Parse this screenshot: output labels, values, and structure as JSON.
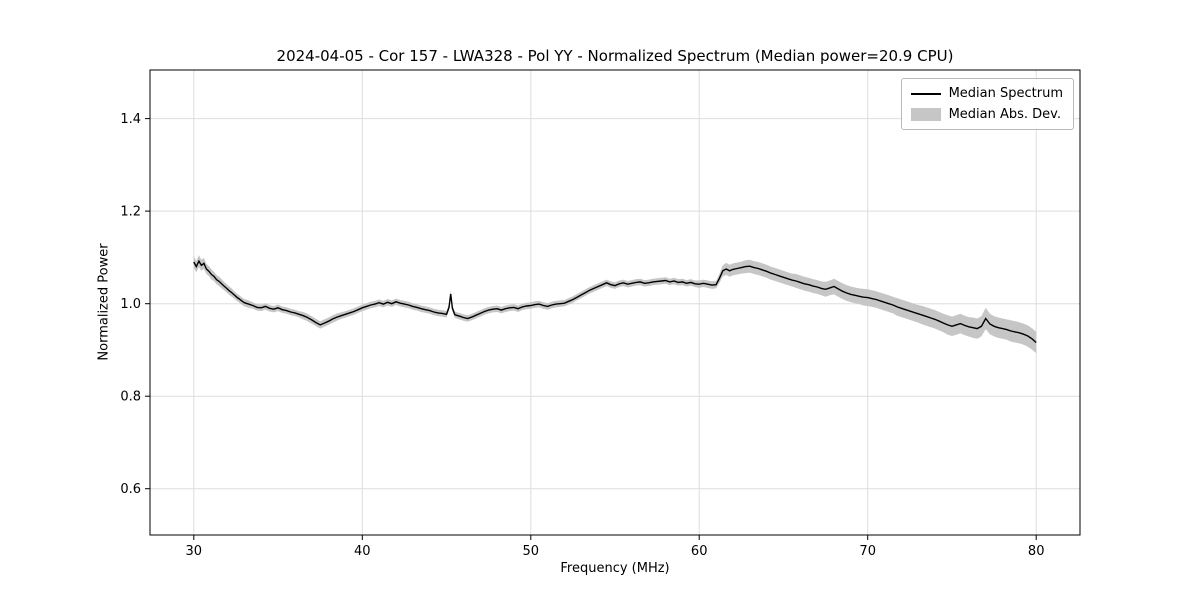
{
  "chart_data": {
    "type": "line",
    "title": "2024-04-05 - Cor 157 - LWA328 - Pol YY - Normalized Spectrum (Median power=20.9 CPU)",
    "xlabel": "Frequency (MHz)",
    "ylabel": "Normalized Power",
    "xlim": [
      27.4,
      82.6
    ],
    "ylim": [
      0.5,
      1.505
    ],
    "xticks": [
      30,
      40,
      50,
      60,
      70,
      80
    ],
    "yticks": [
      0.6,
      0.8,
      1.0,
      1.2,
      1.4
    ],
    "grid": true,
    "grid_color": "#dedede",
    "line_color": "#000000",
    "band_color": "#c6c6c6",
    "legend": {
      "position": "upper right",
      "entries": [
        {
          "label": "Median Spectrum",
          "marker": "line",
          "color": "#000000"
        },
        {
          "label": "Median Abs. Dev.",
          "marker": "patch",
          "color": "#c6c6c6"
        }
      ]
    },
    "point_format": [
      "frequency_mhz",
      "median_normalized_power",
      "median_abs_dev"
    ],
    "points": [
      [
        30.0,
        1.09,
        0.013
      ],
      [
        30.15,
        1.08,
        0.012
      ],
      [
        30.3,
        1.092,
        0.013
      ],
      [
        30.45,
        1.083,
        0.012
      ],
      [
        30.6,
        1.087,
        0.012
      ],
      [
        30.75,
        1.075,
        0.011
      ],
      [
        30.9,
        1.07,
        0.011
      ],
      [
        31.05,
        1.063,
        0.011
      ],
      [
        31.2,
        1.059,
        0.01
      ],
      [
        31.35,
        1.052,
        0.01
      ],
      [
        31.5,
        1.048,
        0.01
      ],
      [
        31.65,
        1.043,
        0.01
      ],
      [
        31.8,
        1.038,
        0.009
      ],
      [
        31.95,
        1.033,
        0.009
      ],
      [
        32.1,
        1.028,
        0.009
      ],
      [
        32.25,
        1.024,
        0.009
      ],
      [
        32.4,
        1.019,
        0.008
      ],
      [
        32.55,
        1.014,
        0.008
      ],
      [
        32.7,
        1.01,
        0.008
      ],
      [
        32.85,
        1.006,
        0.008
      ],
      [
        33.0,
        1.002,
        0.008
      ],
      [
        33.25,
        0.999,
        0.008
      ],
      [
        33.5,
        0.996,
        0.007
      ],
      [
        33.75,
        0.992,
        0.007
      ],
      [
        34.0,
        0.991,
        0.007
      ],
      [
        34.25,
        0.994,
        0.007
      ],
      [
        34.5,
        0.99,
        0.007
      ],
      [
        34.75,
        0.988,
        0.007
      ],
      [
        35.0,
        0.991,
        0.007
      ],
      [
        35.25,
        0.987,
        0.007
      ],
      [
        35.5,
        0.985,
        0.007
      ],
      [
        35.75,
        0.982,
        0.007
      ],
      [
        36.0,
        0.98,
        0.007
      ],
      [
        36.25,
        0.977,
        0.007
      ],
      [
        36.5,
        0.974,
        0.008
      ],
      [
        36.75,
        0.97,
        0.008
      ],
      [
        37.0,
        0.965,
        0.008
      ],
      [
        37.25,
        0.959,
        0.008
      ],
      [
        37.5,
        0.954,
        0.008
      ],
      [
        37.75,
        0.958,
        0.008
      ],
      [
        38.0,
        0.962,
        0.008
      ],
      [
        38.25,
        0.967,
        0.008
      ],
      [
        38.5,
        0.971,
        0.008
      ],
      [
        38.75,
        0.974,
        0.007
      ],
      [
        39.0,
        0.977,
        0.007
      ],
      [
        39.25,
        0.98,
        0.007
      ],
      [
        39.5,
        0.983,
        0.007
      ],
      [
        39.75,
        0.987,
        0.007
      ],
      [
        40.0,
        0.991,
        0.007
      ],
      [
        40.25,
        0.994,
        0.007
      ],
      [
        40.5,
        0.997,
        0.007
      ],
      [
        40.75,
        0.999,
        0.007
      ],
      [
        41.0,
        1.002,
        0.007
      ],
      [
        41.25,
        0.999,
        0.007
      ],
      [
        41.5,
        1.003,
        0.007
      ],
      [
        41.75,
        1.0,
        0.007
      ],
      [
        42.0,
        1.004,
        0.007
      ],
      [
        42.25,
        1.001,
        0.007
      ],
      [
        42.5,
        0.999,
        0.007
      ],
      [
        42.75,
        0.997,
        0.007
      ],
      [
        43.0,
        0.994,
        0.007
      ],
      [
        43.25,
        0.992,
        0.007
      ],
      [
        43.5,
        0.989,
        0.007
      ],
      [
        43.75,
        0.987,
        0.007
      ],
      [
        44.0,
        0.985,
        0.007
      ],
      [
        44.25,
        0.982,
        0.007
      ],
      [
        44.5,
        0.98,
        0.007
      ],
      [
        44.75,
        0.979,
        0.007
      ],
      [
        45.0,
        0.977,
        0.007
      ],
      [
        45.15,
        0.992,
        0.007
      ],
      [
        45.25,
        1.021,
        0.007
      ],
      [
        45.35,
        0.99,
        0.007
      ],
      [
        45.5,
        0.976,
        0.007
      ],
      [
        45.75,
        0.973,
        0.007
      ],
      [
        46.0,
        0.97,
        0.007
      ],
      [
        46.25,
        0.968,
        0.007
      ],
      [
        46.5,
        0.971,
        0.007
      ],
      [
        46.75,
        0.975,
        0.007
      ],
      [
        47.0,
        0.979,
        0.007
      ],
      [
        47.25,
        0.983,
        0.007
      ],
      [
        47.5,
        0.986,
        0.007
      ],
      [
        47.75,
        0.988,
        0.007
      ],
      [
        48.0,
        0.989,
        0.007
      ],
      [
        48.25,
        0.986,
        0.007
      ],
      [
        48.5,
        0.989,
        0.007
      ],
      [
        48.75,
        0.991,
        0.007
      ],
      [
        49.0,
        0.992,
        0.007
      ],
      [
        49.25,
        0.989,
        0.007
      ],
      [
        49.5,
        0.993,
        0.007
      ],
      [
        49.75,
        0.995,
        0.007
      ],
      [
        50.0,
        0.996,
        0.007
      ],
      [
        50.25,
        0.998,
        0.007
      ],
      [
        50.5,
        0.999,
        0.007
      ],
      [
        50.75,
        0.996,
        0.007
      ],
      [
        51.0,
        0.994,
        0.007
      ],
      [
        51.25,
        0.997,
        0.007
      ],
      [
        51.5,
        0.999,
        0.007
      ],
      [
        51.75,
        1.0,
        0.007
      ],
      [
        52.0,
        1.001,
        0.007
      ],
      [
        52.25,
        1.005,
        0.007
      ],
      [
        52.5,
        1.009,
        0.007
      ],
      [
        52.75,
        1.014,
        0.007
      ],
      [
        53.0,
        1.019,
        0.007
      ],
      [
        53.25,
        1.024,
        0.007
      ],
      [
        53.5,
        1.029,
        0.007
      ],
      [
        53.75,
        1.033,
        0.007
      ],
      [
        54.0,
        1.037,
        0.007
      ],
      [
        54.25,
        1.041,
        0.007
      ],
      [
        54.5,
        1.045,
        0.007
      ],
      [
        54.75,
        1.041,
        0.007
      ],
      [
        55.0,
        1.039,
        0.007
      ],
      [
        55.25,
        1.043,
        0.007
      ],
      [
        55.5,
        1.045,
        0.007
      ],
      [
        55.75,
        1.042,
        0.007
      ],
      [
        56.0,
        1.044,
        0.007
      ],
      [
        56.25,
        1.046,
        0.007
      ],
      [
        56.5,
        1.047,
        0.007
      ],
      [
        56.75,
        1.044,
        0.007
      ],
      [
        57.0,
        1.045,
        0.007
      ],
      [
        57.25,
        1.047,
        0.007
      ],
      [
        57.5,
        1.048,
        0.007
      ],
      [
        57.75,
        1.049,
        0.007
      ],
      [
        58.0,
        1.05,
        0.007
      ],
      [
        58.25,
        1.047,
        0.007
      ],
      [
        58.5,
        1.049,
        0.007
      ],
      [
        58.75,
        1.046,
        0.007
      ],
      [
        59.0,
        1.047,
        0.007
      ],
      [
        59.25,
        1.044,
        0.007
      ],
      [
        59.5,
        1.046,
        0.007
      ],
      [
        59.75,
        1.043,
        0.007
      ],
      [
        60.0,
        1.042,
        0.008
      ],
      [
        60.25,
        1.044,
        0.008
      ],
      [
        60.5,
        1.042,
        0.008
      ],
      [
        60.75,
        1.04,
        0.008
      ],
      [
        61.0,
        1.041,
        0.008
      ],
      [
        61.2,
        1.055,
        0.01
      ],
      [
        61.4,
        1.071,
        0.012
      ],
      [
        61.6,
        1.075,
        0.013
      ],
      [
        61.8,
        1.071,
        0.013
      ],
      [
        62.0,
        1.074,
        0.013
      ],
      [
        62.25,
        1.076,
        0.013
      ],
      [
        62.5,
        1.078,
        0.013
      ],
      [
        62.75,
        1.08,
        0.014
      ],
      [
        63.0,
        1.081,
        0.014
      ],
      [
        63.25,
        1.078,
        0.014
      ],
      [
        63.5,
        1.076,
        0.014
      ],
      [
        63.75,
        1.073,
        0.014
      ],
      [
        64.0,
        1.07,
        0.014
      ],
      [
        64.25,
        1.066,
        0.014
      ],
      [
        64.5,
        1.063,
        0.014
      ],
      [
        64.75,
        1.06,
        0.014
      ],
      [
        65.0,
        1.057,
        0.014
      ],
      [
        65.25,
        1.054,
        0.014
      ],
      [
        65.5,
        1.051,
        0.014
      ],
      [
        65.75,
        1.049,
        0.015
      ],
      [
        66.0,
        1.046,
        0.015
      ],
      [
        66.25,
        1.043,
        0.015
      ],
      [
        66.5,
        1.041,
        0.015
      ],
      [
        66.75,
        1.038,
        0.015
      ],
      [
        67.0,
        1.036,
        0.015
      ],
      [
        67.25,
        1.033,
        0.015
      ],
      [
        67.5,
        1.031,
        0.016
      ],
      [
        67.75,
        1.034,
        0.016
      ],
      [
        68.0,
        1.037,
        0.017
      ],
      [
        68.25,
        1.032,
        0.017
      ],
      [
        68.5,
        1.027,
        0.017
      ],
      [
        68.75,
        1.023,
        0.017
      ],
      [
        69.0,
        1.02,
        0.017
      ],
      [
        69.25,
        1.018,
        0.017
      ],
      [
        69.5,
        1.016,
        0.017
      ],
      [
        69.75,
        1.014,
        0.018
      ],
      [
        70.0,
        1.013,
        0.018
      ],
      [
        70.25,
        1.011,
        0.018
      ],
      [
        70.5,
        1.009,
        0.018
      ],
      [
        70.75,
        1.006,
        0.018
      ],
      [
        71.0,
        1.003,
        0.018
      ],
      [
        71.25,
        1.0,
        0.018
      ],
      [
        71.5,
        0.997,
        0.018
      ],
      [
        71.75,
        0.993,
        0.019
      ],
      [
        72.0,
        0.99,
        0.019
      ],
      [
        72.25,
        0.987,
        0.019
      ],
      [
        72.5,
        0.984,
        0.019
      ],
      [
        72.75,
        0.981,
        0.019
      ],
      [
        73.0,
        0.978,
        0.019
      ],
      [
        73.25,
        0.975,
        0.02
      ],
      [
        73.5,
        0.972,
        0.02
      ],
      [
        73.75,
        0.969,
        0.02
      ],
      [
        74.0,
        0.966,
        0.02
      ],
      [
        74.25,
        0.962,
        0.02
      ],
      [
        74.5,
        0.958,
        0.02
      ],
      [
        74.75,
        0.954,
        0.021
      ],
      [
        75.0,
        0.951,
        0.021
      ],
      [
        75.25,
        0.954,
        0.021
      ],
      [
        75.5,
        0.957,
        0.021
      ],
      [
        75.75,
        0.953,
        0.021
      ],
      [
        76.0,
        0.95,
        0.021
      ],
      [
        76.25,
        0.948,
        0.022
      ],
      [
        76.5,
        0.946,
        0.022
      ],
      [
        76.75,
        0.951,
        0.022
      ],
      [
        77.0,
        0.968,
        0.023
      ],
      [
        77.25,
        0.956,
        0.022
      ],
      [
        77.5,
        0.951,
        0.022
      ],
      [
        77.75,
        0.948,
        0.022
      ],
      [
        78.0,
        0.946,
        0.022
      ],
      [
        78.25,
        0.944,
        0.022
      ],
      [
        78.5,
        0.941,
        0.023
      ],
      [
        78.75,
        0.939,
        0.023
      ],
      [
        79.0,
        0.937,
        0.023
      ],
      [
        79.25,
        0.934,
        0.023
      ],
      [
        79.5,
        0.93,
        0.023
      ],
      [
        79.75,
        0.924,
        0.023
      ],
      [
        80.0,
        0.916,
        0.023
      ]
    ]
  }
}
